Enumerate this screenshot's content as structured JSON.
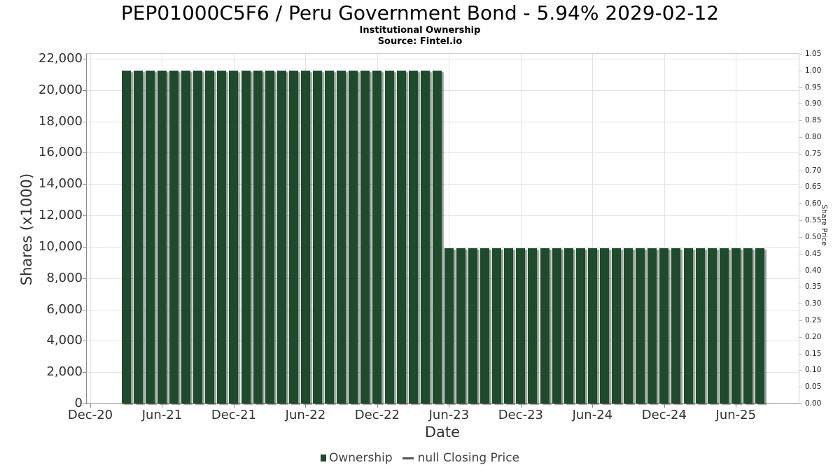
{
  "chart_data": {
    "type": "bar",
    "title": "PEP01000C5F6 / Peru Government Bond - 5.94% 2029-02-12",
    "subtitle": "Institutional Ownership",
    "source": "Source: Fintel.io",
    "xlabel": "Date",
    "ylabel_left": "Shares (x1000)",
    "ylabel_right": "Share Price",
    "x_tick_labels": [
      "Dec-20",
      "Jun-21",
      "Dec-21",
      "Jun-22",
      "Dec-22",
      "Jun-23",
      "Dec-23",
      "Jun-24",
      "Dec-24",
      "Jun-25"
    ],
    "y_left_axis": {
      "min": 0,
      "max": 22000,
      "step": 2000
    },
    "y_right_axis": {
      "min": 0.0,
      "max": 1.05,
      "step": 0.05
    },
    "grid": true,
    "legend_position": "bottom",
    "colors": {
      "bar": "#1d4b2b",
      "line_marker": "#555555",
      "gridline": "#e3e3e3"
    },
    "series": [
      {
        "name": "Ownership",
        "type": "column",
        "color": "#1d4b2b",
        "points": [
          {
            "date": "Mar-21",
            "value": 21250
          },
          {
            "date": "Apr-21",
            "value": 21250
          },
          {
            "date": "May-21",
            "value": 21250
          },
          {
            "date": "Jun-21",
            "value": 21250
          },
          {
            "date": "Jul-21",
            "value": 21250
          },
          {
            "date": "Aug-21",
            "value": 21250
          },
          {
            "date": "Sep-21",
            "value": 21250
          },
          {
            "date": "Oct-21",
            "value": 21250
          },
          {
            "date": "Nov-21",
            "value": 21250
          },
          {
            "date": "Dec-21",
            "value": 21250
          },
          {
            "date": "Jan-22",
            "value": 21250
          },
          {
            "date": "Feb-22",
            "value": 21250
          },
          {
            "date": "Mar-22",
            "value": 21250
          },
          {
            "date": "Apr-22",
            "value": 21250
          },
          {
            "date": "May-22",
            "value": 21250
          },
          {
            "date": "Jun-22",
            "value": 21250
          },
          {
            "date": "Jul-22",
            "value": 21250
          },
          {
            "date": "Aug-22",
            "value": 21250
          },
          {
            "date": "Sep-22",
            "value": 21250
          },
          {
            "date": "Oct-22",
            "value": 21250
          },
          {
            "date": "Nov-22",
            "value": 21250
          },
          {
            "date": "Dec-22",
            "value": 21250
          },
          {
            "date": "Jan-23",
            "value": 21250
          },
          {
            "date": "Feb-23",
            "value": 21250
          },
          {
            "date": "Mar-23",
            "value": 21250
          },
          {
            "date": "Apr-23",
            "value": 21250
          },
          {
            "date": "May-23",
            "value": 21250
          },
          {
            "date": "Jun-23",
            "value": 9900
          },
          {
            "date": "Jul-23",
            "value": 9900
          },
          {
            "date": "Aug-23",
            "value": 9900
          },
          {
            "date": "Sep-23",
            "value": 9900
          },
          {
            "date": "Oct-23",
            "value": 9900
          },
          {
            "date": "Nov-23",
            "value": 9900
          },
          {
            "date": "Dec-23",
            "value": 9900
          },
          {
            "date": "Jan-24",
            "value": 9900
          },
          {
            "date": "Feb-24",
            "value": 9900
          },
          {
            "date": "Mar-24",
            "value": 9900
          },
          {
            "date": "Apr-24",
            "value": 9900
          },
          {
            "date": "May-24",
            "value": 9900
          },
          {
            "date": "Jun-24",
            "value": 9900
          },
          {
            "date": "Jul-24",
            "value": 9900
          },
          {
            "date": "Aug-24",
            "value": 9900
          },
          {
            "date": "Sep-24",
            "value": 9900
          },
          {
            "date": "Oct-24",
            "value": 9900
          },
          {
            "date": "Nov-24",
            "value": 9900
          },
          {
            "date": "Dec-24",
            "value": 9900
          },
          {
            "date": "Jan-25",
            "value": 9900
          },
          {
            "date": "Feb-25",
            "value": 9900
          },
          {
            "date": "Mar-25",
            "value": 9900
          },
          {
            "date": "Apr-25",
            "value": 9900
          },
          {
            "date": "May-25",
            "value": 9900
          },
          {
            "date": "Jun-25",
            "value": 9900
          },
          {
            "date": "Jul-25",
            "value": 9900
          },
          {
            "date": "Aug-25",
            "value": 9900
          }
        ]
      },
      {
        "name": "null Closing Price",
        "type": "line",
        "color": "#555555",
        "points": []
      }
    ],
    "legend": [
      {
        "label": "Ownership",
        "marker": "square",
        "color": "#1d4b2b"
      },
      {
        "label": "null Closing Price",
        "marker": "dash",
        "color": "#555555"
      }
    ]
  }
}
